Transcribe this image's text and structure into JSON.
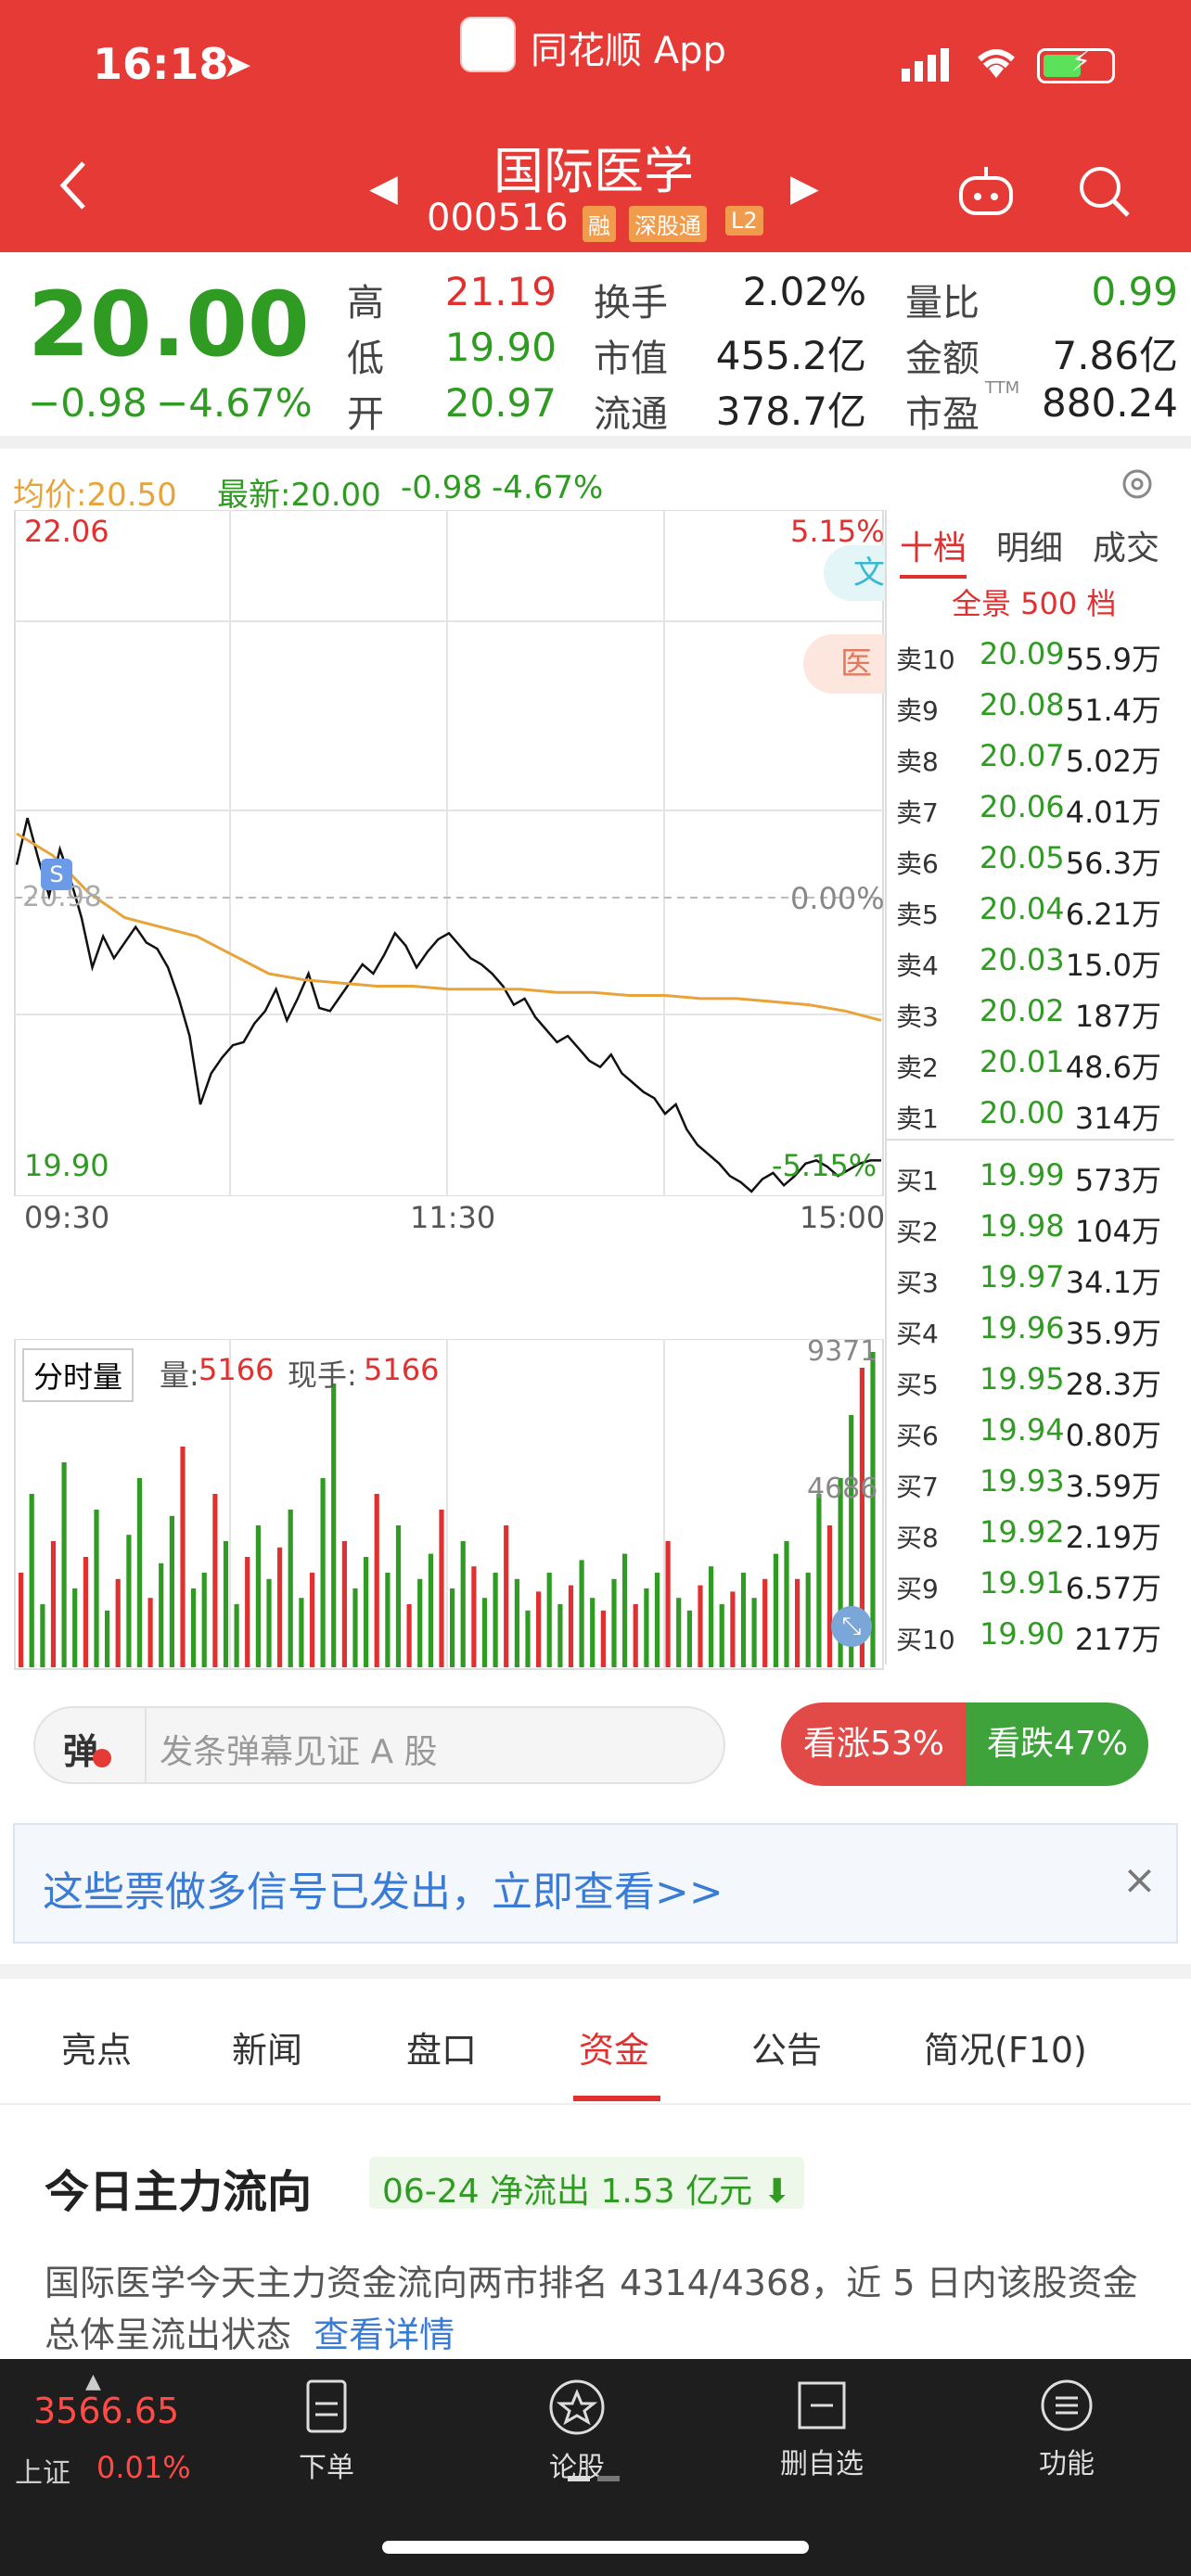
{
  "status_bar": {
    "time": "16:18",
    "app_name": "同花顺 App"
  },
  "header": {
    "stock_name": "国际医学",
    "stock_code": "000516",
    "badges": [
      "融",
      "深股通",
      "L2"
    ]
  },
  "quote": {
    "price": "20.00",
    "change": "−0.98",
    "change_pct": "−4.67%",
    "high_label": "高",
    "high": "21.19",
    "low_label": "低",
    "low": "19.90",
    "open_label": "开",
    "open": "20.97",
    "turnover_label": "换手",
    "turnover": "2.02%",
    "mktcap_label": "市值",
    "mktcap": "455.2亿",
    "float_label": "流通",
    "float": "378.7亿",
    "volratio_label": "量比",
    "volratio": "0.99",
    "amount_label": "金额",
    "amount": "7.86亿",
    "pe_label": "市盈",
    "pe_sup": "TTM",
    "pe": "880.24"
  },
  "chart_info": {
    "avg_label": "均价:20.50",
    "latest_label": "最新:20.00",
    "latest_change": "-0.98",
    "latest_pct": "-4.67%"
  },
  "chart_data": {
    "type": "line",
    "y_top": "22.06",
    "y_bottom": "19.90",
    "pct_top": "5.15%",
    "pct_mid": "0.00%",
    "pct_bottom": "-5.15%",
    "mid_price": "20.98",
    "x_labels": [
      "09:30",
      "11:30",
      "15:00"
    ],
    "ylim": [
      19.9,
      22.06
    ],
    "series": [
      {
        "color": "#111111",
        "x": [
          0,
          3,
          6,
          9,
          12,
          15,
          18,
          21,
          24,
          27,
          30,
          33,
          36,
          39,
          42,
          45,
          48,
          51,
          54,
          57,
          60,
          63,
          66,
          69,
          72,
          75,
          78,
          81,
          84,
          87,
          90,
          93,
          96,
          99,
          102,
          105,
          108,
          111,
          114,
          117,
          120,
          123,
          126,
          129,
          132,
          135,
          138,
          141,
          144,
          147,
          150,
          153,
          156,
          159,
          162,
          165,
          168,
          171,
          174,
          177,
          180,
          183,
          186,
          189,
          192,
          195,
          198,
          201,
          204,
          207,
          210,
          213,
          216,
          219,
          222,
          225,
          228,
          231,
          234,
          237,
          240
        ],
        "values": [
          20.95,
          21.1,
          20.97,
          20.85,
          21.0,
          20.9,
          20.78,
          20.62,
          20.72,
          20.65,
          20.7,
          20.75,
          20.7,
          20.68,
          20.62,
          20.52,
          20.4,
          20.18,
          20.28,
          20.33,
          20.37,
          20.38,
          20.44,
          20.48,
          20.55,
          20.45,
          20.52,
          20.6,
          20.49,
          20.48,
          20.53,
          20.58,
          20.63,
          20.6,
          20.66,
          20.73,
          20.69,
          20.62,
          20.67,
          20.71,
          20.73,
          20.69,
          20.65,
          20.63,
          20.6,
          20.56,
          20.5,
          20.52,
          20.46,
          20.42,
          20.38,
          20.4,
          20.36,
          20.32,
          20.3,
          20.34,
          20.28,
          20.25,
          20.22,
          20.2,
          20.15,
          20.18,
          20.1,
          20.05,
          20.02,
          19.99,
          19.95,
          19.93,
          19.9,
          19.94,
          19.96,
          19.92,
          19.95,
          19.99,
          20.0,
          19.98,
          19.95,
          19.97,
          19.99,
          20.0,
          20.0
        ]
      },
      {
        "color": "#e8a33a",
        "x": [
          0,
          10,
          20,
          30,
          40,
          50,
          60,
          70,
          80,
          90,
          100,
          110,
          120,
          130,
          140,
          150,
          160,
          170,
          180,
          190,
          200,
          210,
          220,
          230,
          240
        ],
        "values": [
          21.05,
          20.98,
          20.86,
          20.78,
          20.75,
          20.72,
          20.66,
          20.6,
          20.58,
          20.57,
          20.56,
          20.56,
          20.55,
          20.55,
          20.55,
          20.54,
          20.54,
          20.53,
          20.53,
          20.52,
          20.52,
          20.51,
          20.5,
          20.48,
          20.45
        ]
      }
    ]
  },
  "volume": {
    "label": "分时量",
    "vol_label": "量:",
    "vol": "5166",
    "hand_label": "现手:",
    "hand": "5166",
    "max": "9371",
    "mid": "4686",
    "bars": [
      30,
      55,
      20,
      40,
      65,
      25,
      35,
      50,
      18,
      28,
      42,
      60,
      22,
      33,
      48,
      70,
      25,
      30,
      55,
      40,
      20,
      35,
      45,
      28,
      38,
      50,
      22,
      30,
      60,
      90,
      40,
      25,
      35,
      55,
      30,
      45,
      20,
      28,
      36,
      50,
      25,
      40,
      32,
      22,
      30,
      45,
      28,
      18,
      24,
      30,
      20,
      26,
      34,
      22,
      18,
      28,
      36,
      20,
      25,
      30,
      40,
      22,
      18,
      26,
      32,
      20,
      24,
      30,
      22,
      28,
      36,
      40,
      28,
      30,
      55,
      45,
      60,
      80,
      95,
      100
    ]
  },
  "orderbook": {
    "tabs": [
      "十档",
      "明细",
      "成交"
    ],
    "title": "全景 500 档",
    "asks": [
      {
        "label": "卖10",
        "price": "20.09",
        "vol": "55.9万"
      },
      {
        "label": "卖9",
        "price": "20.08",
        "vol": "51.4万"
      },
      {
        "label": "卖8",
        "price": "20.07",
        "vol": "5.02万"
      },
      {
        "label": "卖7",
        "price": "20.06",
        "vol": "4.01万"
      },
      {
        "label": "卖6",
        "price": "20.05",
        "vol": "56.3万"
      },
      {
        "label": "卖5",
        "price": "20.04",
        "vol": "6.21万"
      },
      {
        "label": "卖4",
        "price": "20.03",
        "vol": "15.0万"
      },
      {
        "label": "卖3",
        "price": "20.02",
        "vol": "187万"
      },
      {
        "label": "卖2",
        "price": "20.01",
        "vol": "48.6万"
      },
      {
        "label": "卖1",
        "price": "20.00",
        "vol": "314万"
      }
    ],
    "bids": [
      {
        "label": "买1",
        "price": "19.99",
        "vol": "573万"
      },
      {
        "label": "买2",
        "price": "19.98",
        "vol": "104万"
      },
      {
        "label": "买3",
        "price": "19.97",
        "vol": "34.1万"
      },
      {
        "label": "买4",
        "price": "19.96",
        "vol": "35.9万"
      },
      {
        "label": "买5",
        "price": "19.95",
        "vol": "28.3万"
      },
      {
        "label": "买6",
        "price": "19.94",
        "vol": "0.80万"
      },
      {
        "label": "买7",
        "price": "19.93",
        "vol": "3.59万"
      },
      {
        "label": "买8",
        "price": "19.92",
        "vol": "2.19万"
      },
      {
        "label": "买9",
        "price": "19.91",
        "vol": "6.57万"
      },
      {
        "label": "买10",
        "price": "19.90",
        "vol": "217万"
      }
    ]
  },
  "chart_tags": [
    "文",
    "医药"
  ],
  "danmu": {
    "icon_text": "弹",
    "placeholder": "发条弹幕见证 A 股"
  },
  "sentiment": {
    "bull": "看涨53%",
    "bear": "看跌47%"
  },
  "banner": {
    "text": "这些票做多信号已发出，立即查看>>"
  },
  "section_tabs": [
    "亮点",
    "新闻",
    "盘口",
    "资金",
    "公告",
    "简况(F10)"
  ],
  "fund_flow": {
    "title": "今日主力流向",
    "tag": "06-24 净流出 1.53 亿元",
    "desc": "国际医学今天主力资金流向两市排名 4314/4368，近 5 日内该股资金总体呈流出状态",
    "link": "查看详情"
  },
  "bottom_bar": {
    "index_value": "3566.65",
    "index_name": "上证",
    "index_pct": "0.01%",
    "nav": [
      "下单",
      "论股",
      "删自选",
      "功能"
    ]
  }
}
